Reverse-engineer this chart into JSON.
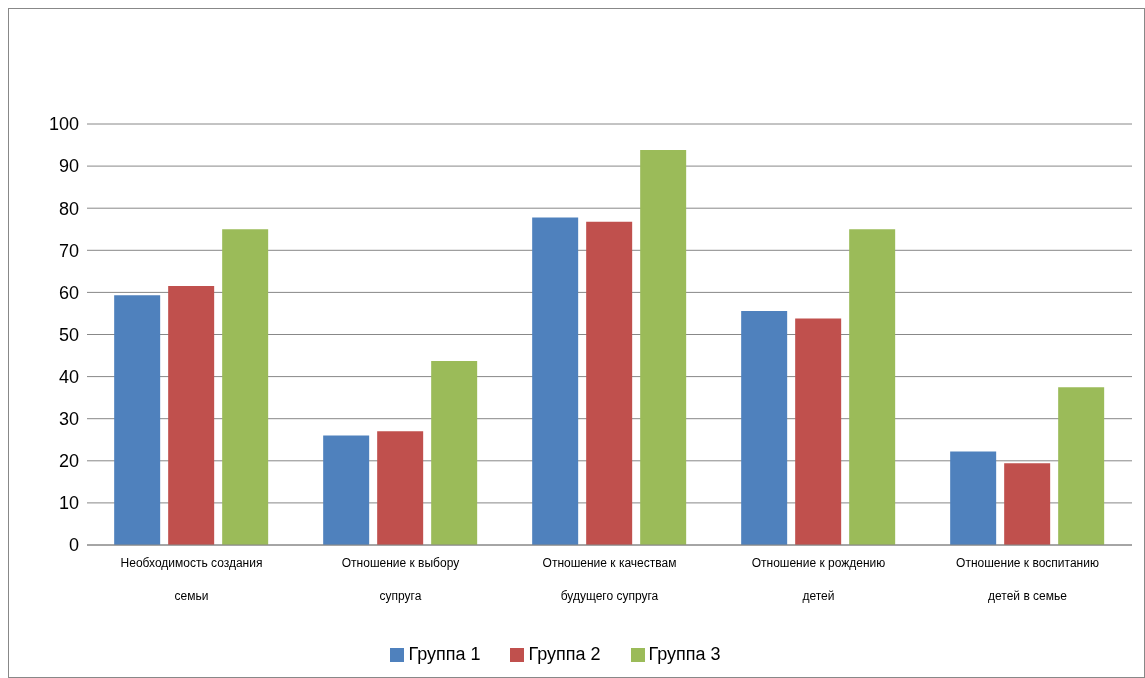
{
  "chart_data": {
    "type": "bar",
    "categories": [
      "Необходимость создания семьи",
      "Отношение к выбору супруга",
      "Отношение к качествам будущего супруга",
      "Отношение к рождению детей",
      "Отношение к воспитанию детей в семье"
    ],
    "series": [
      {
        "name": "Группа 1",
        "color": "#4f81bd",
        "values": [
          59.3,
          26,
          77.8,
          55.6,
          22.2
        ]
      },
      {
        "name": "Группа 2",
        "color": "#c0504d",
        "values": [
          61.5,
          27,
          76.8,
          53.8,
          19.4
        ]
      },
      {
        "name": "Группа 3",
        "color": "#9bbb59",
        "values": [
          75,
          43.7,
          93.8,
          75,
          37.5
        ]
      }
    ],
    "ylim": [
      0,
      100
    ],
    "yticks": [
      0,
      10,
      20,
      30,
      40,
      50,
      60,
      70,
      80,
      90,
      100
    ],
    "grid": "y",
    "legend": "bottom"
  }
}
